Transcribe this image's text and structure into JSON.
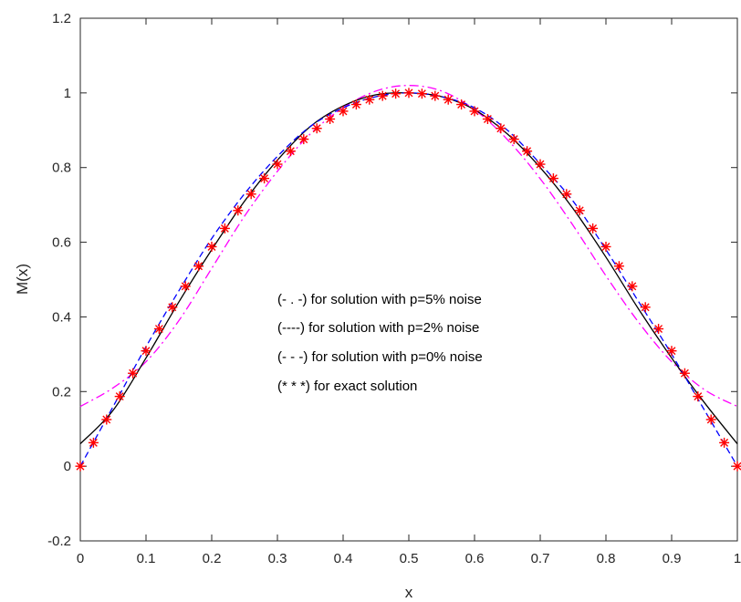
{
  "chart_data": {
    "type": "line",
    "xlabel": "x",
    "ylabel": "M(x)",
    "xlim": [
      0,
      1
    ],
    "ylim": [
      -0.2,
      1.2
    ],
    "xticks": [
      "0",
      "0.1",
      "0.2",
      "0.3",
      "0.4",
      "0.5",
      "0.6",
      "0.7",
      "0.8",
      "0.9",
      "1"
    ],
    "yticks": [
      "-0.2",
      "0",
      "0.2",
      "0.4",
      "0.6",
      "0.8",
      "1",
      "1.2"
    ],
    "grid": false,
    "annotations": [
      "(- . -) for solution with p=5% noise",
      "(----) for solution with p=2% noise",
      "(- - -) for solution with p=0% noise",
      "(* * *) for exact solution"
    ],
    "series": [
      {
        "style": "dash-dot",
        "color": "#ff00ff",
        "x": [
          0,
          0.05,
          0.1,
          0.15,
          0.2,
          0.25,
          0.3,
          0.35,
          0.4,
          0.45,
          0.5,
          0.55,
          0.6,
          0.65,
          0.7,
          0.75,
          0.8,
          0.85,
          0.9,
          0.95,
          1
        ],
        "values": [
          0.16,
          0.21,
          0.28,
          0.39,
          0.53,
          0.67,
          0.79,
          0.89,
          0.96,
          1.005,
          1.02,
          1.005,
          0.955,
          0.875,
          0.77,
          0.645,
          0.51,
          0.385,
          0.28,
          0.205,
          0.16
        ]
      },
      {
        "style": "solid",
        "color": "#000000",
        "x": [
          0,
          0.05,
          0.1,
          0.15,
          0.2,
          0.25,
          0.3,
          0.35,
          0.4,
          0.45,
          0.5,
          0.55,
          0.6,
          0.65,
          0.7,
          0.75,
          0.8,
          0.85,
          0.9,
          0.95,
          1
        ],
        "values": [
          0.06,
          0.15,
          0.29,
          0.44,
          0.58,
          0.71,
          0.82,
          0.91,
          0.965,
          0.995,
          1.0,
          0.99,
          0.955,
          0.89,
          0.8,
          0.69,
          0.56,
          0.42,
          0.29,
          0.17,
          0.06
        ]
      },
      {
        "style": "dashed",
        "color": "#0000ff",
        "x": [
          0,
          0.05,
          0.1,
          0.15,
          0.2,
          0.25,
          0.3,
          0.35,
          0.4,
          0.45,
          0.5,
          0.55,
          0.6,
          0.65,
          0.7,
          0.75,
          0.8,
          0.85,
          0.9,
          0.95,
          1
        ],
        "values": [
          0.0,
          0.16,
          0.32,
          0.47,
          0.61,
          0.73,
          0.83,
          0.91,
          0.96,
          0.99,
          1.0,
          0.99,
          0.96,
          0.9,
          0.81,
          0.71,
          0.58,
          0.44,
          0.3,
          0.15,
          0.0
        ]
      },
      {
        "style": "markers",
        "marker": "*",
        "color": "#ff0000",
        "x": [
          0,
          0.02,
          0.04,
          0.06,
          0.08,
          0.1,
          0.12,
          0.14,
          0.16,
          0.18,
          0.2,
          0.22,
          0.24,
          0.26,
          0.28,
          0.3,
          0.32,
          0.34,
          0.36,
          0.38,
          0.4,
          0.42,
          0.44,
          0.46,
          0.48,
          0.5,
          0.52,
          0.54,
          0.56,
          0.58,
          0.6,
          0.62,
          0.64,
          0.66,
          0.68,
          0.7,
          0.72,
          0.74,
          0.76,
          0.78,
          0.8,
          0.82,
          0.84,
          0.86,
          0.88,
          0.9,
          0.92,
          0.94,
          0.96,
          0.98,
          1
        ],
        "values": [
          0.0,
          0.063,
          0.125,
          0.187,
          0.249,
          0.309,
          0.368,
          0.426,
          0.482,
          0.536,
          0.588,
          0.637,
          0.685,
          0.729,
          0.771,
          0.809,
          0.844,
          0.876,
          0.905,
          0.93,
          0.951,
          0.969,
          0.982,
          0.992,
          0.998,
          1.0,
          0.998,
          0.992,
          0.982,
          0.969,
          0.951,
          0.93,
          0.905,
          0.876,
          0.844,
          0.809,
          0.771,
          0.729,
          0.685,
          0.637,
          0.588,
          0.536,
          0.482,
          0.426,
          0.368,
          0.309,
          0.249,
          0.187,
          0.125,
          0.063,
          0.0
        ]
      }
    ]
  }
}
